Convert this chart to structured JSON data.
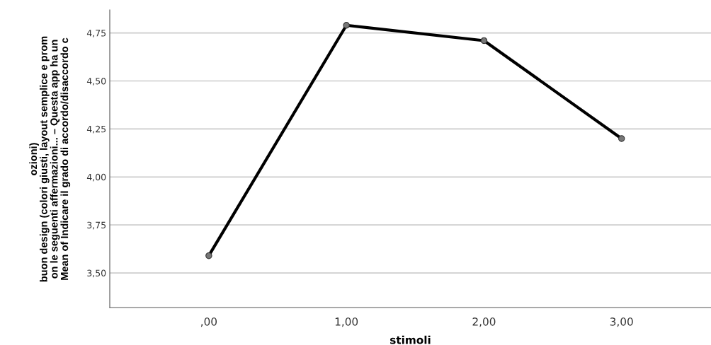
{
  "chart_data": {
    "type": "line",
    "xlabel": "stimoli",
    "ylabel": "ozioni)\nbuon design (colori giusti, layout semplice e prom\non le seguenti affermazioni... – Questa app ha un\nMean of Indicare il grado di accordo/disaccordo c",
    "categories": [
      ",00",
      "1,00",
      "2,00",
      "3,00"
    ],
    "series": [
      {
        "color": "#000000",
        "values": [
          3.59,
          4.79,
          4.71,
          4.2
        ]
      }
    ],
    "ylim": [
      3.32,
      4.87
    ],
    "yticks": [
      {
        "value": 3.5,
        "label": "3,50"
      },
      {
        "value": 3.75,
        "label": "3,75"
      },
      {
        "value": 4.0,
        "label": "4,00"
      },
      {
        "value": 4.25,
        "label": "4,25"
      },
      {
        "value": 4.5,
        "label": "4,50"
      },
      {
        "value": 4.75,
        "label": "4,75"
      }
    ],
    "grid": "y",
    "marker": "circle",
    "line_style": "solid"
  }
}
